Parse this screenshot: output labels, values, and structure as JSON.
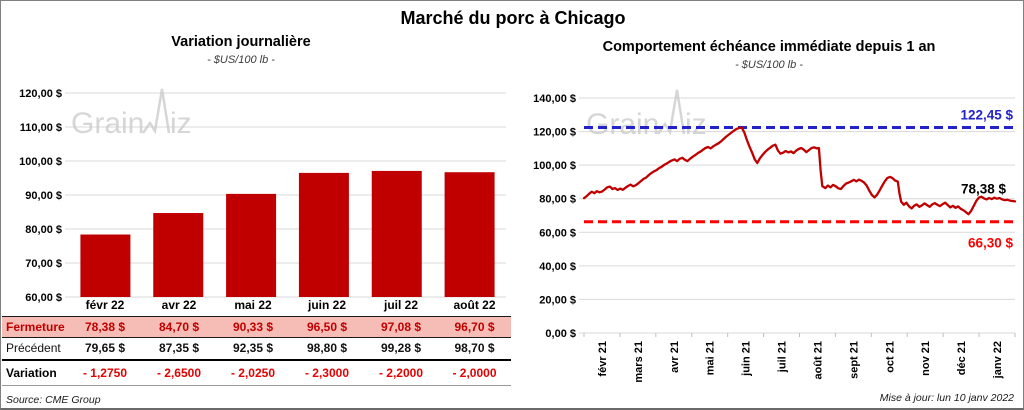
{
  "page": {
    "title": "Marché du porc à Chicago",
    "source": "Source: CME Group",
    "updated": "Mise à jour: lun 10 janv 2022",
    "watermark": "GrainWiz"
  },
  "colors": {
    "bar": "#C00000",
    "line": "#C00000",
    "resistance_blue": "#2222CC",
    "support_red": "#FF0000",
    "last_black": "#000000",
    "gridline": "#D9D9D9",
    "table_highlight_bg": "#F5BDB5",
    "table_red": "#C00000",
    "variation_red": "#E60000",
    "watermark_gray": "#C9C9C9"
  },
  "table": {
    "col_headers": [
      "févr 22",
      "avr 22",
      "mai 22",
      "juin 22",
      "juil 22",
      "août 22"
    ],
    "rows": [
      {
        "kind": "fermeture",
        "label": "Fermeture",
        "values": [
          "78,38  $",
          "84,70  $",
          "90,33  $",
          "96,50  $",
          "97,08  $",
          "96,70  $"
        ]
      },
      {
        "kind": "precedent",
        "label": "Précédent",
        "values": [
          "79,65  $",
          "87,35  $",
          "92,35  $",
          "98,80  $",
          "99,28  $",
          "98,70  $"
        ]
      },
      {
        "kind": "variation",
        "label": "Variation",
        "values": [
          "- 1,2750",
          "- 2,6500",
          "- 2,0250",
          "- 2,3000",
          "- 2,2000",
          "- 2,0000"
        ]
      }
    ]
  },
  "chart_data": [
    {
      "type": "bar",
      "title": "Variation journalière",
      "subtitle": "- $US/100 lb -",
      "categories": [
        "févr 22",
        "avr 22",
        "mai 22",
        "juin 22",
        "juil 22",
        "août 22"
      ],
      "values": [
        78.38,
        84.7,
        90.33,
        96.5,
        97.08,
        96.7
      ],
      "ylim": [
        60,
        120
      ],
      "ytick_step": 10,
      "ytick_labels": [
        "60,00 $",
        "70,00 $",
        "80,00 $",
        "90,00 $",
        "100,00 $",
        "110,00 $",
        "120,00 $"
      ],
      "grid": true,
      "legend": "none"
    },
    {
      "type": "line",
      "title": "Comportement échéance immédiate depuis 1 an",
      "subtitle": "- $US/100 lb -",
      "x_labels": [
        "févr 21",
        "mars 21",
        "avr 21",
        "mai 21",
        "juin 21",
        "juil 21",
        "août 21",
        "sept 21",
        "oct 21",
        "nov 21",
        "déc 21",
        "janv 22"
      ],
      "ylim": [
        0,
        140
      ],
      "ytick_step": 20,
      "ytick_labels": [
        "0,00 $",
        "20,00 $",
        "40,00 $",
        "60,00 $",
        "80,00 $",
        "100,00 $",
        "120,00 $",
        "140,00 $"
      ],
      "grid": true,
      "legend": "none",
      "resistance": {
        "value": 122.45,
        "label": "122,45 $"
      },
      "support": {
        "value": 66.3,
        "label": "66,30 $"
      },
      "last": {
        "value": 78.38,
        "label": "78,38 $"
      },
      "points": [
        [
          0.0,
          80.3
        ],
        [
          0.006,
          81.5
        ],
        [
          0.012,
          83.0
        ],
        [
          0.018,
          84.2
        ],
        [
          0.024,
          83.3
        ],
        [
          0.03,
          84.5
        ],
        [
          0.036,
          83.8
        ],
        [
          0.042,
          84.3
        ],
        [
          0.048,
          85.5
        ],
        [
          0.054,
          86.8
        ],
        [
          0.06,
          87.2
        ],
        [
          0.066,
          85.8
        ],
        [
          0.072,
          86.3
        ],
        [
          0.078,
          85.2
        ],
        [
          0.084,
          86.0
        ],
        [
          0.09,
          85.3
        ],
        [
          0.096,
          86.5
        ],
        [
          0.102,
          87.6
        ],
        [
          0.108,
          88.4
        ],
        [
          0.114,
          87.4
        ],
        [
          0.12,
          88.0
        ],
        [
          0.126,
          89.2
        ],
        [
          0.132,
          90.5
        ],
        [
          0.138,
          91.8
        ],
        [
          0.144,
          92.6
        ],
        [
          0.15,
          94.0
        ],
        [
          0.156,
          95.2
        ],
        [
          0.162,
          96.3
        ],
        [
          0.168,
          97.0
        ],
        [
          0.174,
          98.2
        ],
        [
          0.18,
          99.0
        ],
        [
          0.186,
          100.2
        ],
        [
          0.192,
          101.0
        ],
        [
          0.198,
          102.0
        ],
        [
          0.204,
          102.8
        ],
        [
          0.21,
          103.4
        ],
        [
          0.216,
          102.4
        ],
        [
          0.222,
          103.8
        ],
        [
          0.228,
          104.4
        ],
        [
          0.234,
          103.2
        ],
        [
          0.24,
          102.4
        ],
        [
          0.246,
          103.8
        ],
        [
          0.252,
          105.0
        ],
        [
          0.258,
          106.0
        ],
        [
          0.264,
          107.2
        ],
        [
          0.27,
          108.0
        ],
        [
          0.276,
          109.2
        ],
        [
          0.282,
          110.2
        ],
        [
          0.288,
          110.8
        ],
        [
          0.294,
          110.0
        ],
        [
          0.3,
          111.2
        ],
        [
          0.306,
          112.2
        ],
        [
          0.312,
          113.0
        ],
        [
          0.318,
          114.2
        ],
        [
          0.324,
          115.6
        ],
        [
          0.33,
          117.0
        ],
        [
          0.336,
          118.2
        ],
        [
          0.342,
          119.4
        ],
        [
          0.348,
          120.6
        ],
        [
          0.354,
          121.6
        ],
        [
          0.36,
          122.2
        ],
        [
          0.366,
          122.4
        ],
        [
          0.372,
          119.5
        ],
        [
          0.378,
          115.0
        ],
        [
          0.384,
          111.0
        ],
        [
          0.39,
          107.5
        ],
        [
          0.396,
          103.5
        ],
        [
          0.402,
          101.3
        ],
        [
          0.408,
          104.0
        ],
        [
          0.414,
          106.0
        ],
        [
          0.42,
          107.8
        ],
        [
          0.426,
          109.2
        ],
        [
          0.432,
          110.4
        ],
        [
          0.438,
          111.6
        ],
        [
          0.444,
          112.2
        ],
        [
          0.45,
          108.6
        ],
        [
          0.456,
          106.8
        ],
        [
          0.462,
          107.4
        ],
        [
          0.468,
          108.4
        ],
        [
          0.474,
          107.6
        ],
        [
          0.48,
          108.2
        ],
        [
          0.486,
          107.2
        ],
        [
          0.492,
          108.6
        ],
        [
          0.498,
          109.6
        ],
        [
          0.504,
          110.2
        ],
        [
          0.51,
          109.2
        ],
        [
          0.516,
          107.8
        ],
        [
          0.522,
          109.0
        ],
        [
          0.528,
          110.2
        ],
        [
          0.534,
          110.6
        ],
        [
          0.54,
          110.0
        ],
        [
          0.545,
          110.2
        ],
        [
          0.549,
          97.0
        ],
        [
          0.553,
          87.5
        ],
        [
          0.56,
          86.3
        ],
        [
          0.566,
          87.8
        ],
        [
          0.572,
          86.8
        ],
        [
          0.578,
          88.2
        ],
        [
          0.584,
          87.4
        ],
        [
          0.59,
          86.2
        ],
        [
          0.596,
          85.8
        ],
        [
          0.602,
          87.6
        ],
        [
          0.608,
          89.0
        ],
        [
          0.614,
          89.6
        ],
        [
          0.62,
          90.4
        ],
        [
          0.626,
          91.2
        ],
        [
          0.632,
          90.4
        ],
        [
          0.638,
          91.4
        ],
        [
          0.644,
          90.6
        ],
        [
          0.65,
          89.6
        ],
        [
          0.656,
          87.8
        ],
        [
          0.662,
          84.8
        ],
        [
          0.668,
          82.2
        ],
        [
          0.674,
          80.8
        ],
        [
          0.68,
          82.4
        ],
        [
          0.686,
          85.0
        ],
        [
          0.692,
          87.8
        ],
        [
          0.698,
          90.4
        ],
        [
          0.704,
          92.4
        ],
        [
          0.71,
          93.0
        ],
        [
          0.716,
          92.2
        ],
        [
          0.722,
          90.8
        ],
        [
          0.728,
          90.2
        ],
        [
          0.732,
          83.0
        ],
        [
          0.736,
          78.2
        ],
        [
          0.742,
          76.4
        ],
        [
          0.748,
          77.6
        ],
        [
          0.754,
          75.4
        ],
        [
          0.76,
          74.2
        ],
        [
          0.766,
          75.8
        ],
        [
          0.772,
          76.6
        ],
        [
          0.778,
          75.2
        ],
        [
          0.784,
          76.0
        ],
        [
          0.79,
          77.2
        ],
        [
          0.796,
          76.2
        ],
        [
          0.802,
          75.2
        ],
        [
          0.808,
          76.6
        ],
        [
          0.814,
          77.4
        ],
        [
          0.82,
          76.4
        ],
        [
          0.826,
          75.6
        ],
        [
          0.832,
          76.8
        ],
        [
          0.838,
          77.6
        ],
        [
          0.844,
          76.2
        ],
        [
          0.85,
          74.8
        ],
        [
          0.856,
          75.8
        ],
        [
          0.862,
          74.6
        ],
        [
          0.868,
          75.4
        ],
        [
          0.874,
          74.0
        ],
        [
          0.88,
          73.2
        ],
        [
          0.886,
          72.0
        ],
        [
          0.892,
          70.8
        ],
        [
          0.898,
          72.6
        ],
        [
          0.904,
          75.6
        ],
        [
          0.91,
          78.6
        ],
        [
          0.916,
          80.6
        ],
        [
          0.922,
          81.2
        ],
        [
          0.928,
          80.2
        ],
        [
          0.934,
          79.6
        ],
        [
          0.94,
          80.4
        ],
        [
          0.946,
          79.8
        ],
        [
          0.952,
          80.6
        ],
        [
          0.958,
          80.0
        ],
        [
          0.964,
          80.4
        ],
        [
          0.97,
          79.6
        ],
        [
          0.976,
          79.2
        ],
        [
          0.982,
          79.4
        ],
        [
          0.988,
          78.9
        ],
        [
          1.0,
          78.4
        ]
      ]
    }
  ]
}
